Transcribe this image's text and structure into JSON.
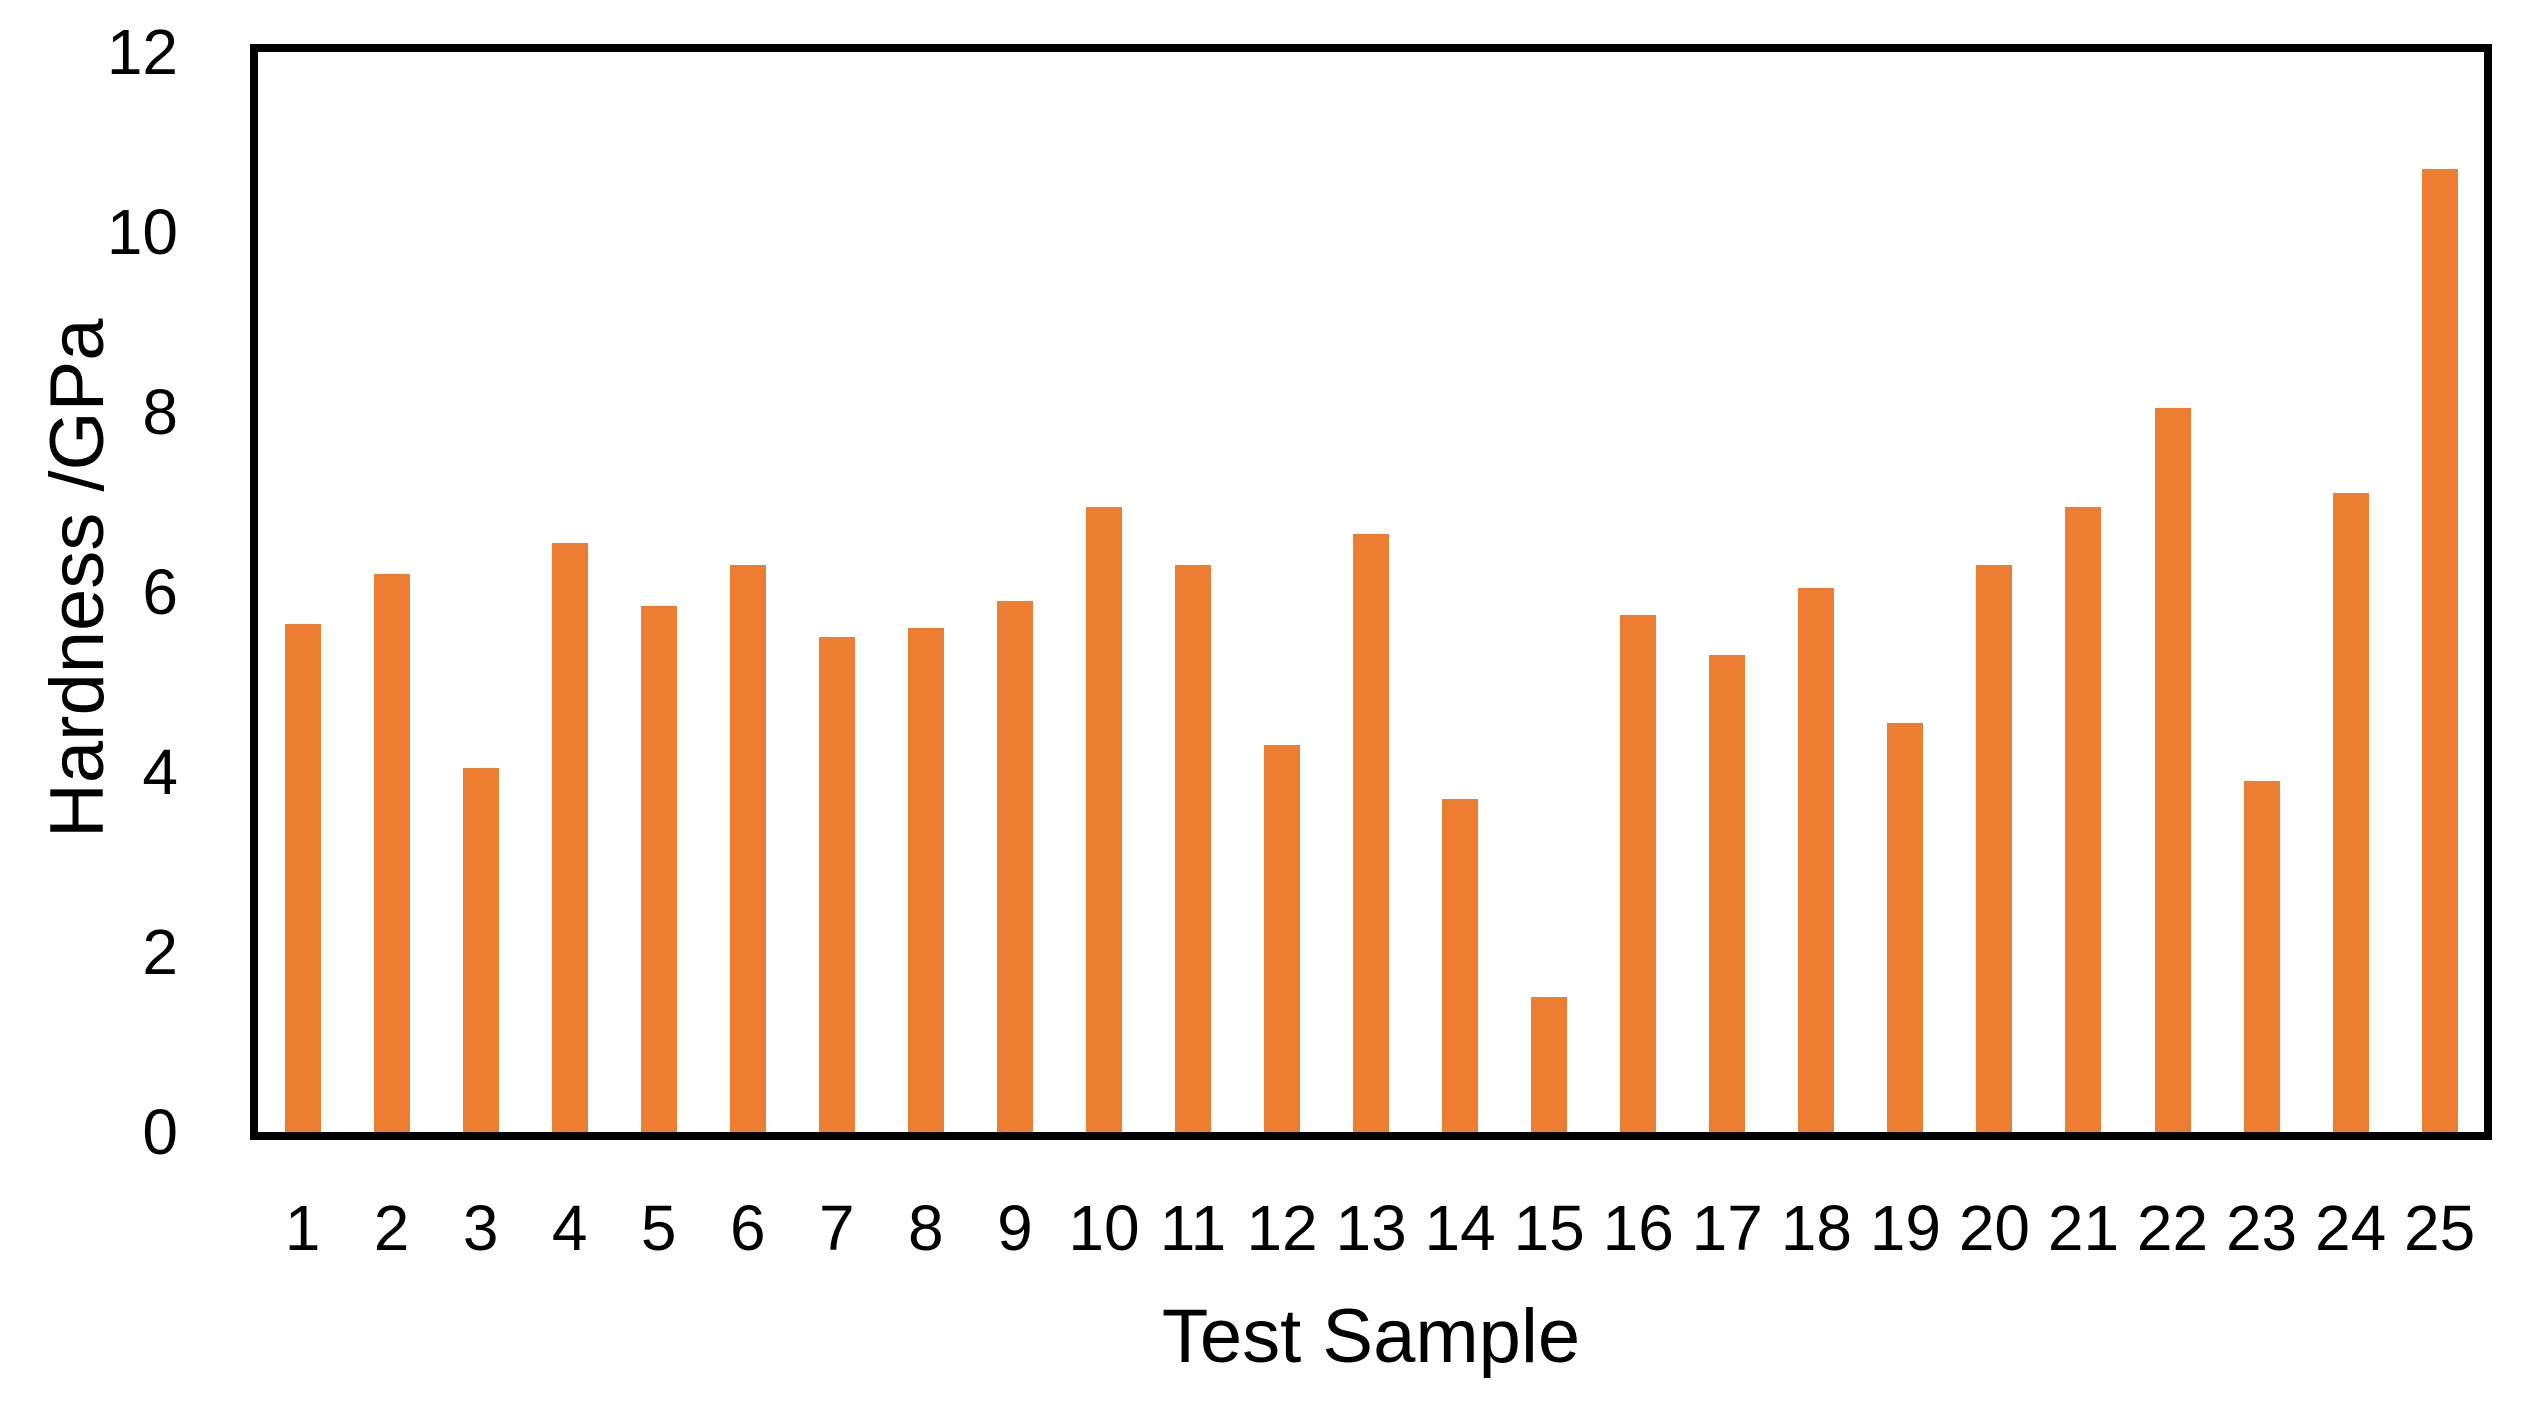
{
  "chart_data": {
    "type": "bar",
    "title": "",
    "xlabel": "Test Sample",
    "ylabel": "Hardness /GPa",
    "categories": [
      "1",
      "2",
      "3",
      "4",
      "5",
      "6",
      "7",
      "8",
      "9",
      "10",
      "11",
      "12",
      "13",
      "14",
      "15",
      "16",
      "17",
      "18",
      "19",
      "20",
      "21",
      "22",
      "23",
      "24",
      "25"
    ],
    "values": [
      5.65,
      6.2,
      4.05,
      6.55,
      5.85,
      6.3,
      5.5,
      5.6,
      5.9,
      6.95,
      6.3,
      4.3,
      6.65,
      3.7,
      1.5,
      5.75,
      5.3,
      6.05,
      4.55,
      6.3,
      6.95,
      8.05,
      3.9,
      7.1,
      10.7
    ],
    "ylim": [
      0,
      12
    ],
    "yticks": [
      0,
      2,
      4,
      6,
      8,
      10,
      12
    ],
    "grid": false,
    "legend": "none",
    "bar_color": "#ED7D31",
    "axis_color": "#000000",
    "text_color": "#000000"
  }
}
